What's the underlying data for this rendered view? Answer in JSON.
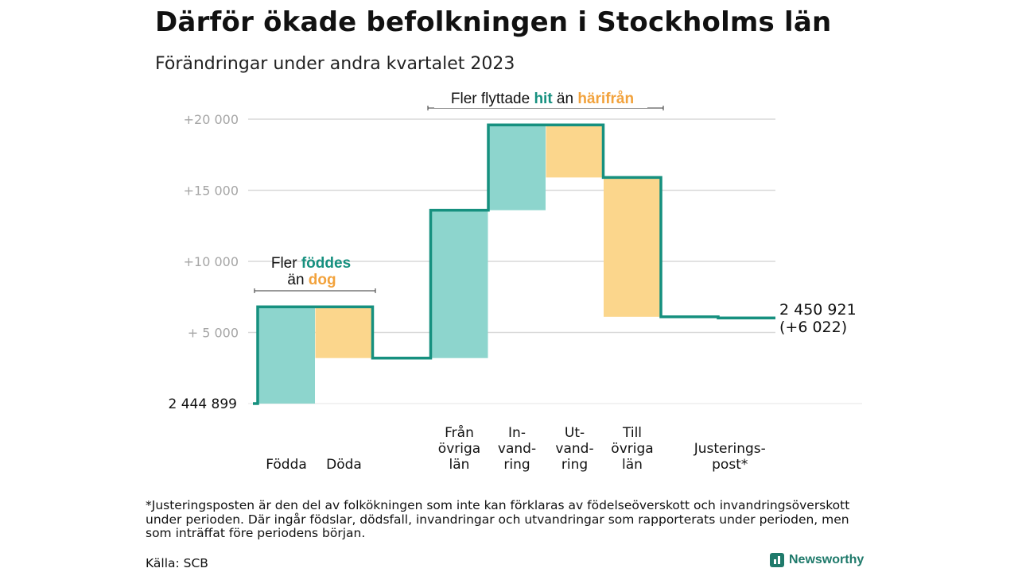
{
  "title": "Därför ökade befolkningen i Stockholms län",
  "subtitle": "Förändringar under andra kvartalet 2023",
  "footnote": "*Justeringsposten är den del av folkökningen som inte kan förklaras av födelseöverskott och invandringsöverskott under perioden. Där ingår födslar, dödsfall, invandringar och utvandringar som rapporterats under perioden, men som inträffat före periodens början.",
  "source": "Källa: SCB",
  "brand": "Newsworthy",
  "colors": {
    "increase": "#8dd5cd",
    "decrease": "#fbd68c",
    "line": "#16907f",
    "teal_text": "#16907f",
    "orange_text": "#f2a23c",
    "grid": "#d9d9d9",
    "tick": "#a6a6a6"
  },
  "annotations": {
    "births": {
      "part1": "Fler ",
      "part2": "föddes",
      "part3": "än ",
      "part4": "dog"
    },
    "migration": {
      "part1": "Fler flyttade ",
      "part2": "hit",
      "part3": " än ",
      "part4": "härifrån"
    }
  },
  "chart_data": {
    "type": "waterfall",
    "start_value": 2444899,
    "start_label": "2  444   899",
    "end_label_line1": "2 450 921",
    "end_label_line2": "(+6 022)",
    "ylim": [
      0,
      20000
    ],
    "yticks": [
      {
        "value": 5000,
        "label": "+  5  000"
      },
      {
        "value": 10000,
        "label": "+10   000"
      },
      {
        "value": 15000,
        "label": "+15   000"
      },
      {
        "value": 20000,
        "label": "+20   000"
      }
    ],
    "steps": [
      {
        "lines": [
          "Födda"
        ],
        "change": 6800,
        "type": "increase",
        "slot": 0
      },
      {
        "lines": [
          "Döda"
        ],
        "change": -3600,
        "type": "decrease",
        "slot": 1
      },
      {
        "lines": [
          "Från",
          "övriga",
          "län"
        ],
        "change": 10400,
        "type": "increase",
        "slot": 3
      },
      {
        "lines": [
          "In-",
          "vand-",
          "ring"
        ],
        "change": 6000,
        "type": "increase",
        "slot": 4
      },
      {
        "lines": [
          "Ut-",
          "vand-",
          "ring"
        ],
        "change": -3700,
        "type": "decrease",
        "slot": 5
      },
      {
        "lines": [
          "Till",
          "övriga",
          "län"
        ],
        "change": -9800,
        "type": "decrease",
        "slot": 6
      },
      {
        "lines": [
          "Justerings-",
          "post*"
        ],
        "change": 0,
        "type": "adjustment",
        "slot": 7.5
      }
    ],
    "final_change": 6022,
    "grid": true,
    "legend": "none"
  }
}
